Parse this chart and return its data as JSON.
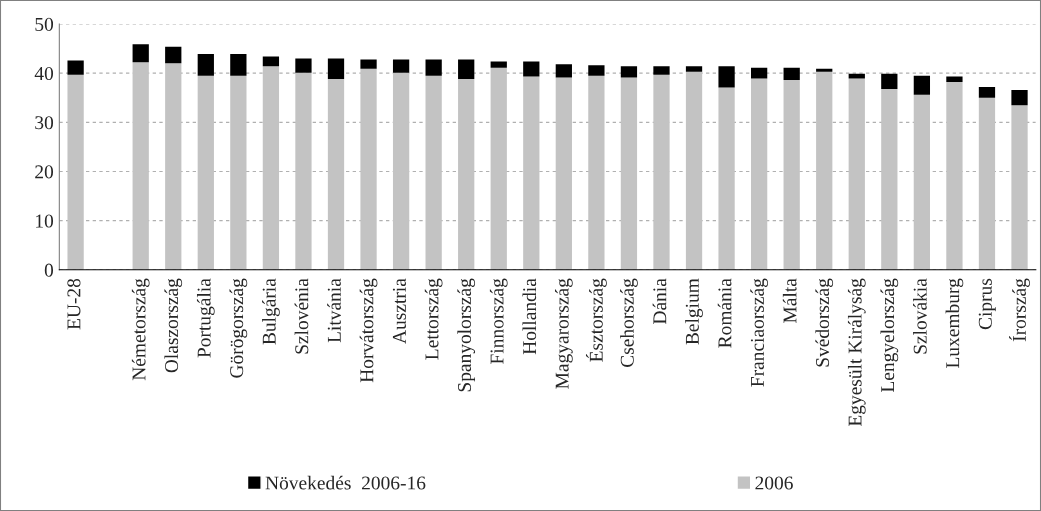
{
  "chart_data": {
    "type": "bar",
    "stacked": true,
    "categories": [
      "EU-28",
      null,
      "Németország",
      "Olaszország",
      "Portugália",
      "Görögország",
      "Bulgária",
      "Szlovénia",
      "Litvánia",
      "Horvátország",
      "Ausztria",
      "Lettország",
      "Spanyolország",
      "Finnország",
      "Hollandia",
      "Magyarország",
      "Észtország",
      "Csehország",
      "Dánia",
      "Belgium",
      "Románia",
      "Franciaország",
      "Málta",
      "Svédország",
      "Egyesült Királyság",
      "Lengyelország",
      "Szlovákia",
      "Luxemburg",
      "Ciprus",
      "Írország"
    ],
    "series": [
      {
        "name": "2006",
        "color": "#c3c3c3",
        "values": [
          39.7,
          null,
          42.2,
          42.0,
          39.5,
          39.5,
          41.4,
          40.1,
          38.8,
          40.9,
          40.1,
          39.5,
          38.8,
          41.1,
          39.3,
          39.1,
          39.5,
          39.1,
          39.7,
          40.3,
          37.1,
          38.9,
          38.6,
          40.3,
          38.9,
          36.8,
          35.6,
          38.2,
          35.0,
          33.5
        ]
      },
      {
        "name": "Növekedés  2006-16",
        "color": "#000000",
        "values": [
          2.9,
          null,
          3.7,
          3.4,
          4.4,
          4.4,
          2.0,
          2.9,
          4.2,
          1.9,
          2.7,
          3.3,
          4.0,
          1.3,
          3.1,
          2.7,
          2.1,
          2.3,
          1.7,
          1.1,
          4.3,
          2.2,
          2.5,
          0.6,
          1.0,
          3.1,
          3.9,
          1.1,
          2.2,
          3.1
        ]
      }
    ],
    "ylim": [
      0,
      50
    ],
    "yticks": [
      0,
      10,
      20,
      30,
      40,
      50
    ],
    "grid": "y",
    "legend": "bottom"
  }
}
